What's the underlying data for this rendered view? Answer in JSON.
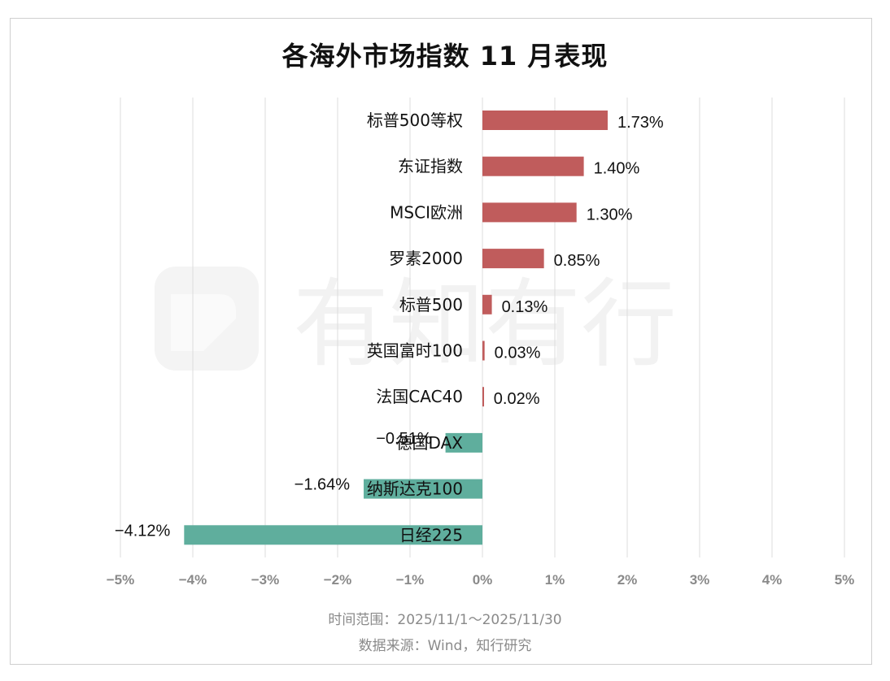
{
  "chart_data": {
    "type": "bar",
    "orientation": "horizontal",
    "title": "各海外市场指数 11 月表现",
    "categories": [
      "标普500等权",
      "东证指数",
      "MSCI欧洲",
      "罗素2000",
      "标普500",
      "英国富时100",
      "法国CAC40",
      "德国DAX",
      "纳斯达克100",
      "日经225"
    ],
    "values": [
      1.73,
      1.4,
      1.3,
      0.85,
      0.13,
      0.03,
      0.02,
      -0.51,
      -1.64,
      -4.12
    ],
    "data_labels": [
      "1.73%",
      "1.40%",
      "1.30%",
      "0.85%",
      "0.13%",
      "0.03%",
      "0.02%",
      "−0.51%",
      "−1.64%",
      "−4.12%"
    ],
    "xlim": [
      -5,
      5
    ],
    "x_ticks": [
      -5,
      -4,
      -3,
      -2,
      -1,
      0,
      1,
      2,
      3,
      4,
      5
    ],
    "x_tick_labels": [
      "−5%",
      "−4%",
      "−3%",
      "−2%",
      "−1%",
      "0%",
      "1%",
      "2%",
      "3%",
      "4%",
      "5%"
    ],
    "grid": "vertical",
    "colors": {
      "positive": "#c05c5c",
      "negative": "#5fae9d",
      "grid": "#dcdcdc",
      "tick": "#8a8a8a"
    }
  },
  "footer": {
    "time_range": "时间范围：2025/11/1～2025/11/30",
    "source": "数据来源：Wind，知行研究"
  },
  "watermark": {
    "text": "有知有行"
  }
}
